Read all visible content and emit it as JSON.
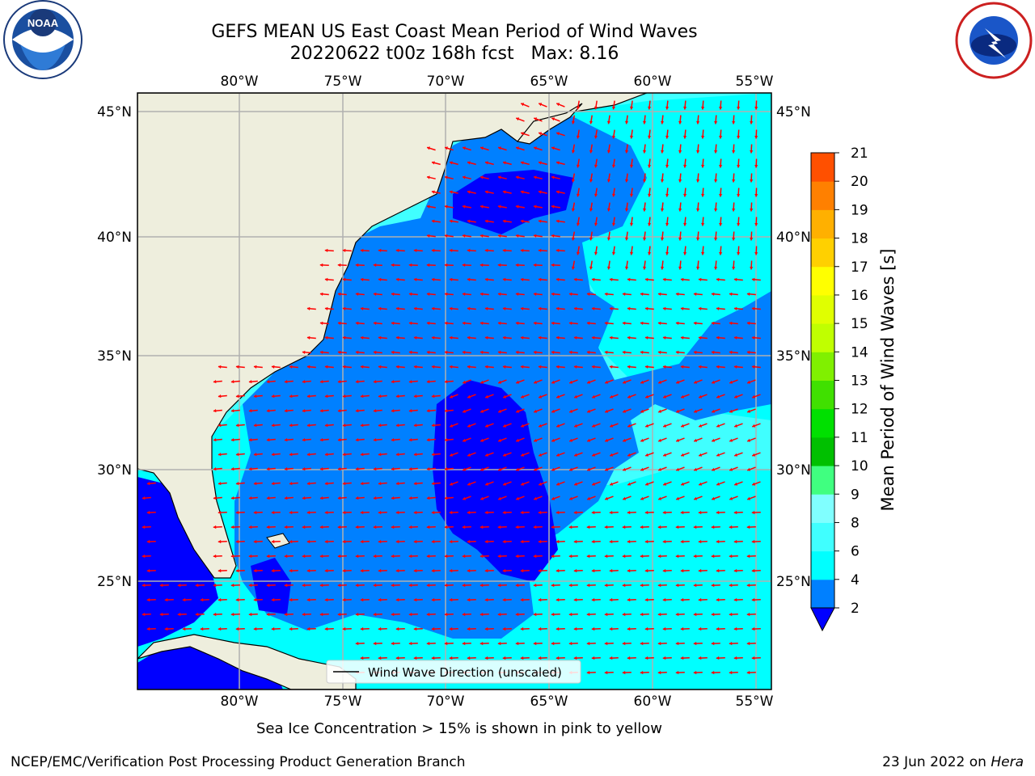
{
  "title": {
    "line1": "GEFS MEAN US East Coast Mean Period of Wind Waves",
    "line2": "20220622 t00z 168h fcst   Max: 8.16"
  },
  "map": {
    "lon_labels": [
      "80°W",
      "75°W",
      "70°W",
      "65°W",
      "60°W",
      "55°W"
    ],
    "lat_labels": [
      "45°N",
      "40°N",
      "35°N",
      "30°N",
      "25°N"
    ],
    "colors": {
      "land": "#eeeedd",
      "level_under_2": "#0000ff",
      "level_2_4": "#0080ff",
      "level_4_6": "#00ffff",
      "level_6_8": "#40ffff",
      "grid": "#b0b0b0",
      "arrows": "#ff0000"
    }
  },
  "legend": {
    "wind_wave_direction": "Wind Wave Direction (unscaled)"
  },
  "colorbar": {
    "label": "Mean Period of Wind Waves [s]",
    "ticks": [
      "2",
      "4",
      "6",
      "8",
      "9",
      "10",
      "11",
      "12",
      "13",
      "14",
      "15",
      "16",
      "17",
      "18",
      "19",
      "20",
      "21"
    ],
    "colors": [
      "#0080ff",
      "#00ffff",
      "#40ffff",
      "#80ffff",
      "#40ff80",
      "#00c000",
      "#00e000",
      "#40e000",
      "#80f000",
      "#c0ff00",
      "#e0ff00",
      "#ffff00",
      "#ffd000",
      "#ffb000",
      "#ff8000",
      "#ff5000",
      "#ff2000",
      "#ff0000"
    ]
  },
  "sea_ice_note": "Sea Ice Concentration > 15% is shown in pink to yellow",
  "footer": {
    "left": "NCEP/EMC/Verification Post Processing Product Generation Branch",
    "date": "23 Jun 2022 on ",
    "machine": "Hera"
  },
  "logos": {
    "noaa_text": "NOAA",
    "nws_text": "NATIONAL WEATHER SERVICE"
  }
}
